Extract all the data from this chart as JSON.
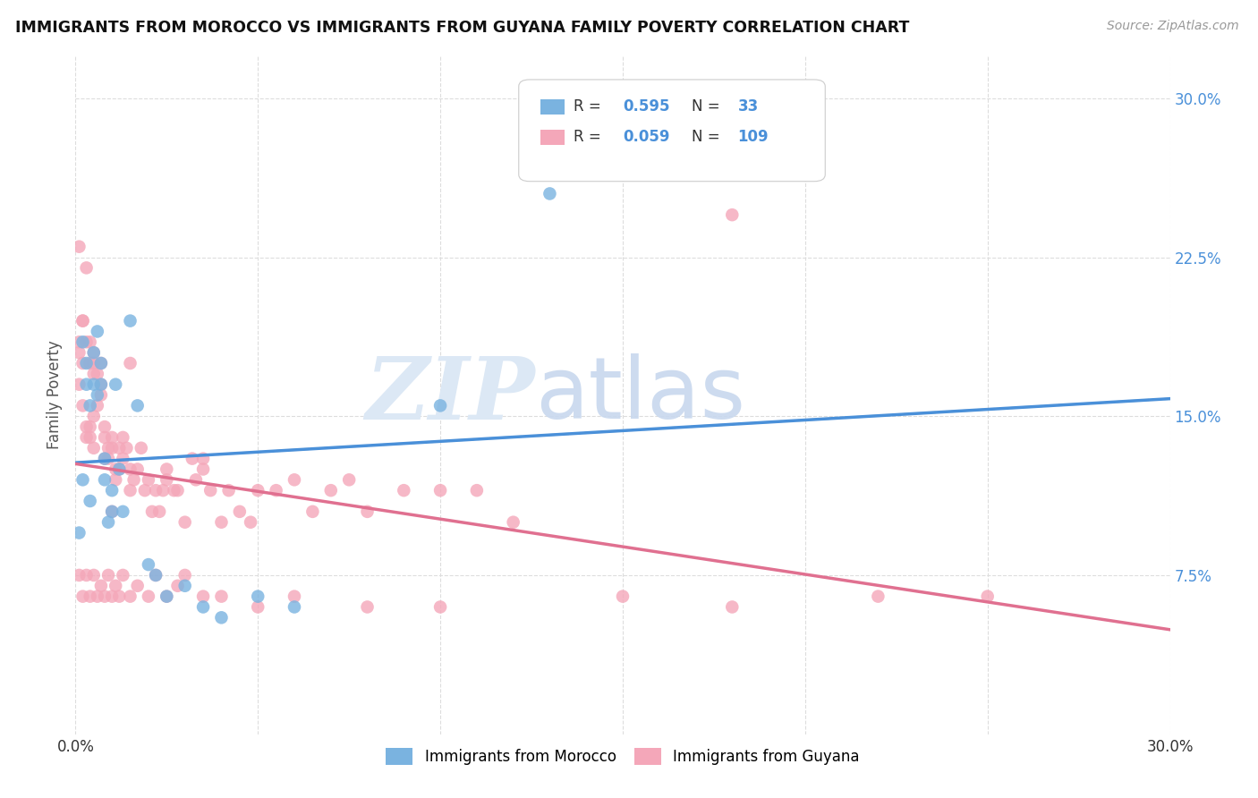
{
  "title": "IMMIGRANTS FROM MOROCCO VS IMMIGRANTS FROM GUYANA FAMILY POVERTY CORRELATION CHART",
  "source": "Source: ZipAtlas.com",
  "ylabel": "Family Poverty",
  "xlim": [
    0.0,
    0.3
  ],
  "ylim": [
    0.0,
    0.32
  ],
  "yticks": [
    0.075,
    0.15,
    0.225,
    0.3
  ],
  "ytick_labels": [
    "7.5%",
    "15.0%",
    "22.5%",
    "30.0%"
  ],
  "xtick_positions": [
    0.0,
    0.05,
    0.1,
    0.15,
    0.2,
    0.25,
    0.3
  ],
  "xtick_labels": [
    "0.0%",
    "",
    "",
    "",
    "",
    "",
    "30.0%"
  ],
  "legend_R1": "0.595",
  "legend_N1": "33",
  "legend_R2": "0.059",
  "legend_N2": "109",
  "morocco_color": "#7ab3e0",
  "guyana_color": "#f4a7b9",
  "morocco_line_color": "#4a90d9",
  "guyana_line_color": "#e07090",
  "dash_line_color": "#c8c8c8",
  "background_color": "#ffffff",
  "morocco_x": [
    0.001,
    0.002,
    0.002,
    0.003,
    0.003,
    0.004,
    0.004,
    0.005,
    0.005,
    0.006,
    0.006,
    0.007,
    0.007,
    0.008,
    0.008,
    0.009,
    0.01,
    0.01,
    0.011,
    0.012,
    0.013,
    0.015,
    0.017,
    0.02,
    0.022,
    0.025,
    0.03,
    0.035,
    0.04,
    0.05,
    0.06,
    0.1,
    0.13
  ],
  "morocco_y": [
    0.095,
    0.12,
    0.185,
    0.165,
    0.175,
    0.11,
    0.155,
    0.165,
    0.18,
    0.16,
    0.19,
    0.175,
    0.165,
    0.12,
    0.13,
    0.1,
    0.105,
    0.115,
    0.165,
    0.125,
    0.105,
    0.195,
    0.155,
    0.08,
    0.075,
    0.065,
    0.07,
    0.06,
    0.055,
    0.065,
    0.06,
    0.155,
    0.255
  ],
  "guyana_x": [
    0.001,
    0.001,
    0.001,
    0.002,
    0.002,
    0.002,
    0.003,
    0.003,
    0.003,
    0.004,
    0.004,
    0.004,
    0.005,
    0.005,
    0.005,
    0.005,
    0.006,
    0.006,
    0.007,
    0.007,
    0.007,
    0.008,
    0.008,
    0.008,
    0.009,
    0.009,
    0.01,
    0.01,
    0.01,
    0.011,
    0.011,
    0.012,
    0.012,
    0.013,
    0.013,
    0.014,
    0.015,
    0.015,
    0.016,
    0.017,
    0.018,
    0.019,
    0.02,
    0.021,
    0.022,
    0.023,
    0.024,
    0.025,
    0.027,
    0.028,
    0.03,
    0.032,
    0.033,
    0.035,
    0.037,
    0.04,
    0.042,
    0.045,
    0.048,
    0.05,
    0.055,
    0.06,
    0.065,
    0.07,
    0.075,
    0.08,
    0.09,
    0.1,
    0.11,
    0.12,
    0.001,
    0.002,
    0.003,
    0.004,
    0.005,
    0.006,
    0.007,
    0.008,
    0.009,
    0.01,
    0.011,
    0.012,
    0.013,
    0.015,
    0.017,
    0.02,
    0.022,
    0.025,
    0.028,
    0.03,
    0.035,
    0.04,
    0.05,
    0.06,
    0.08,
    0.1,
    0.15,
    0.18,
    0.22,
    0.25,
    0.001,
    0.002,
    0.003,
    0.004,
    0.005,
    0.015,
    0.025,
    0.035,
    0.18
  ],
  "guyana_y": [
    0.18,
    0.165,
    0.185,
    0.195,
    0.155,
    0.175,
    0.145,
    0.14,
    0.185,
    0.145,
    0.14,
    0.175,
    0.135,
    0.175,
    0.18,
    0.15,
    0.155,
    0.17,
    0.165,
    0.16,
    0.175,
    0.13,
    0.14,
    0.145,
    0.135,
    0.13,
    0.105,
    0.135,
    0.14,
    0.12,
    0.125,
    0.125,
    0.135,
    0.13,
    0.14,
    0.135,
    0.115,
    0.125,
    0.12,
    0.125,
    0.135,
    0.115,
    0.12,
    0.105,
    0.115,
    0.105,
    0.115,
    0.12,
    0.115,
    0.115,
    0.1,
    0.13,
    0.12,
    0.125,
    0.115,
    0.1,
    0.115,
    0.105,
    0.1,
    0.115,
    0.115,
    0.12,
    0.105,
    0.115,
    0.12,
    0.105,
    0.115,
    0.115,
    0.115,
    0.1,
    0.075,
    0.065,
    0.075,
    0.065,
    0.075,
    0.065,
    0.07,
    0.065,
    0.075,
    0.065,
    0.07,
    0.065,
    0.075,
    0.065,
    0.07,
    0.065,
    0.075,
    0.065,
    0.07,
    0.075,
    0.065,
    0.065,
    0.06,
    0.065,
    0.06,
    0.06,
    0.065,
    0.06,
    0.065,
    0.065,
    0.23,
    0.195,
    0.22,
    0.185,
    0.17,
    0.175,
    0.125,
    0.13,
    0.245
  ]
}
